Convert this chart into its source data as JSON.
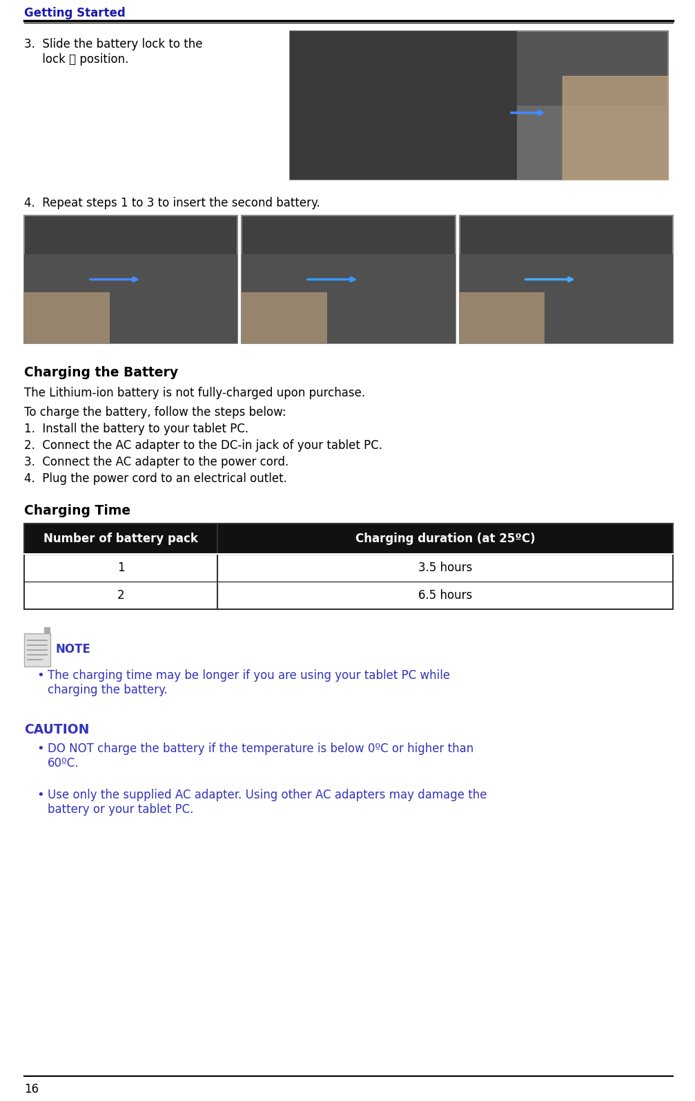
{
  "page_bg": "#ffffff",
  "header_text": "Getting Started",
  "header_color": "#1a1aaa",
  "header_font_size": 12,
  "divider_color": "#000000",
  "body_color": "#000000",
  "blue_color": "#3333bb",
  "step3_text_line1": "3.  Slide the battery lock to the",
  "step3_text_line2": "     lock ⏻ position.",
  "step4_text": "4.  Repeat steps 1 to 3 to insert the second battery.",
  "charging_heading": "Charging the Battery",
  "charging_intro": "The Lithium-ion battery is not fully-charged upon purchase.",
  "charging_steps_intro": "To charge the battery, follow the steps below:",
  "charging_steps": [
    "1.  Install the battery to your tablet PC.",
    "2.  Connect the AC adapter to the DC-in jack of your tablet PC.",
    "3.  Connect the AC adapter to the power cord.",
    "4.  Plug the power cord to an electrical outlet."
  ],
  "charging_time_heading": "Charging Time",
  "table_header": [
    "Number of battery pack",
    "Charging duration (at 25ºC)"
  ],
  "table_rows": [
    [
      "1",
      "3.5 hours"
    ],
    [
      "2",
      "6.5 hours"
    ]
  ],
  "table_header_bg": "#111111",
  "table_header_fg": "#ffffff",
  "table_row_bg": "#ffffff",
  "table_border": "#333333",
  "note_label": "NOTE",
  "note_bullets": [
    "The charging time may be longer if you are using your tablet PC while\ncharging the battery."
  ],
  "caution_label": "CAUTION",
  "caution_bullets": [
    "DO NOT charge the battery if the temperature is below 0ºC or higher than\n60ºC.",
    "Use only the supplied AC adapter. Using other AC adapters may damage the\nbattery or your tablet PC."
  ],
  "footer_number": "16",
  "font_size_body": 12,
  "font_size_heading": 13.5,
  "img1_color": "#555555",
  "img2_color": "#4a4a4a",
  "img3_color": "#505050",
  "img4_color": "#484848"
}
